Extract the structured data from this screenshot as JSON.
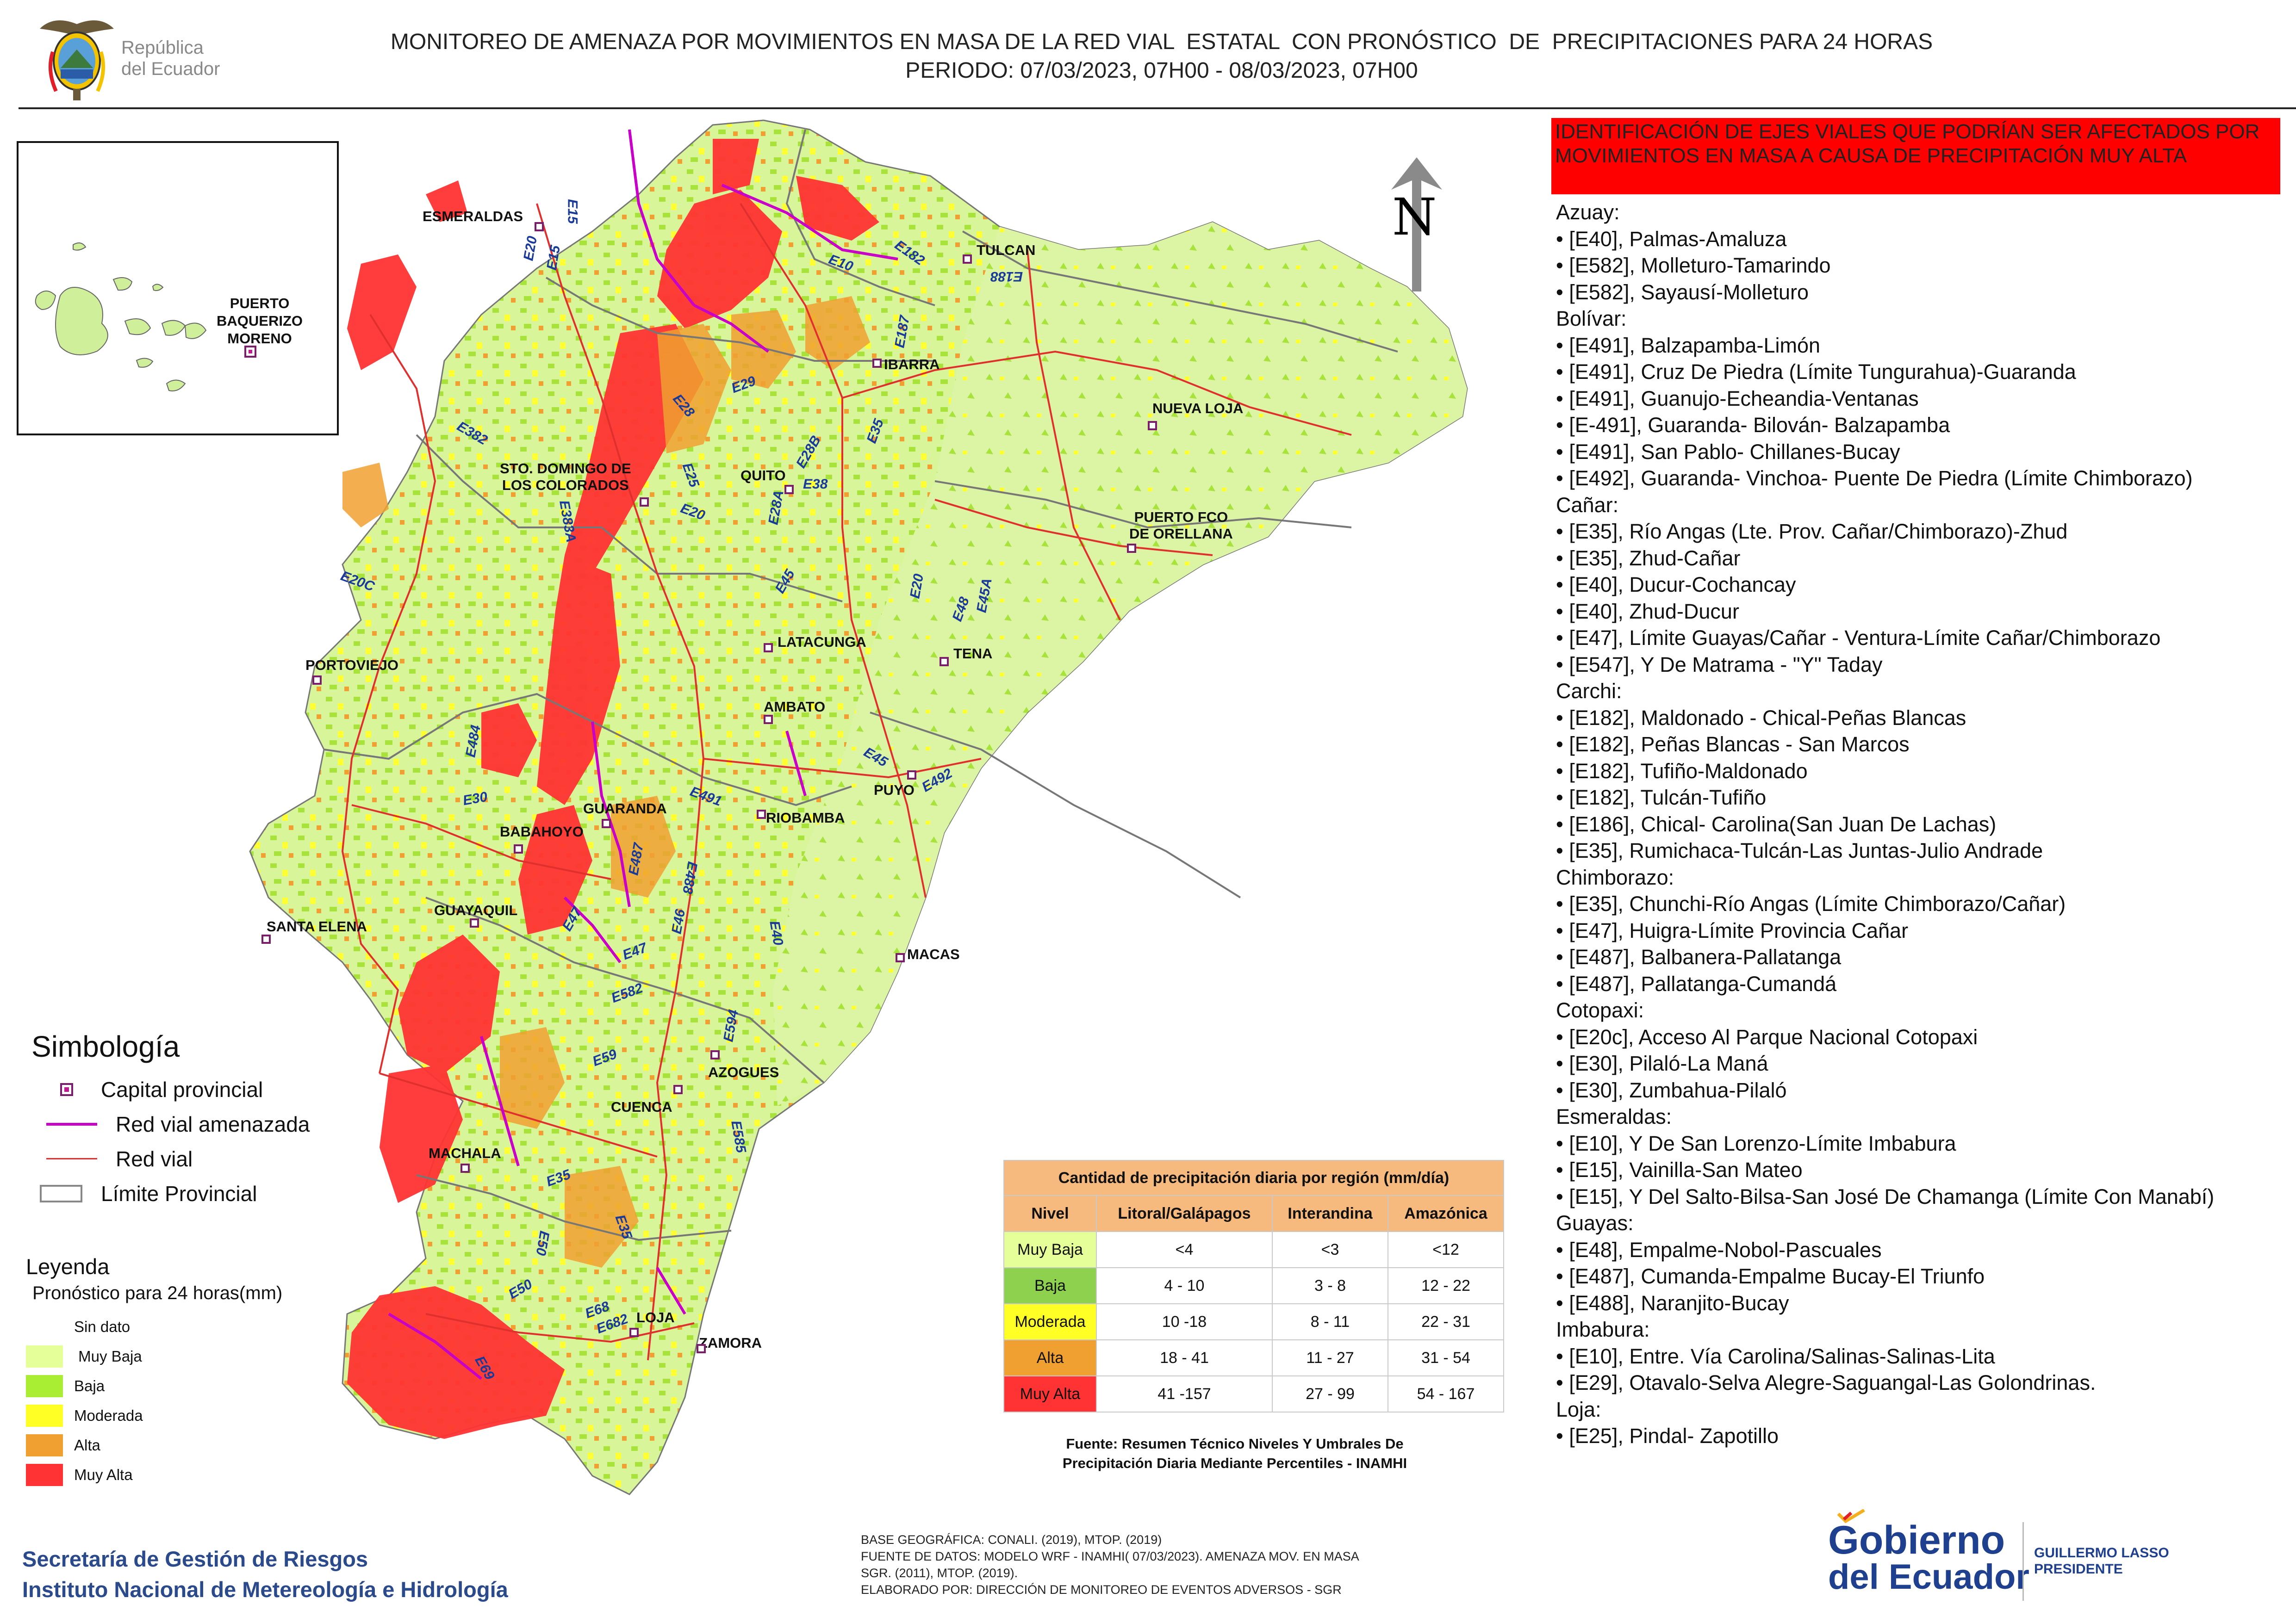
{
  "header": {
    "title_line1": "MONITOREO DE AMENAZA POR MOVIMIENTOS EN MASA DE LA RED VIAL  ESTATAL  CON PRONÓSTICO  DE  PRECIPITACIONES PARA 24 HORAS",
    "title_line2": "PERIODO: 07/03/2023, 07H00 - 08/03/2023, 07H00",
    "logo_line1": "República",
    "logo_line2": "del Ecuador"
  },
  "north_label": "N",
  "inset": {
    "city_line1": "PUERTO",
    "city_line2": "BAQUERIZO",
    "city_line3": "MORENO"
  },
  "cities": [
    "ESMERALDAS",
    "TULCAN",
    "IBARRA",
    "NUEVA LOJA",
    "QUITO",
    "STO. DOMINGO DE",
    "LOS COLORADOS",
    "PUERTO FCO",
    "DE ORELLANA",
    "PORTOVIEJO",
    "LATACUNGA",
    "TENA",
    "AMBATO",
    "PUYO",
    "GUARANDA",
    "RIOBAMBA",
    "BABAHOYO",
    "GUAYAQUIL",
    "SANTA ELENA",
    "MACAS",
    "AZOGUES",
    "CUENCA",
    "MACHALA",
    "LOJA",
    "ZAMORA"
  ],
  "road_labels": [
    "E15",
    "E20",
    "E15",
    "E10",
    "E182",
    "E188",
    "E187",
    "E29",
    "E28",
    "E382",
    "E28B",
    "E35",
    "E25",
    "E20",
    "E28A",
    "E38",
    "E383A",
    "E20C",
    "E45",
    "E20",
    "E45A",
    "E48",
    "E484",
    "E30",
    "E45",
    "E492",
    "E491",
    "E487",
    "E488",
    "E47",
    "E46",
    "E40",
    "E47",
    "E582",
    "E594",
    "E59",
    "E585",
    "E35",
    "E50",
    "E35",
    "E50",
    "E68",
    "E682",
    "E69"
  ],
  "route_panel": {
    "header": "IDENTIFICACIÓN DE EJES VIALES QUE PODRÍAN SER AFECTADOS POR MOVIMIENTOS EN MASA A CAUSA DE PRECIPITACIÓN MUY ALTA",
    "groups": [
      {
        "province": "Azuay:",
        "items": [
          "• [E40], Palmas-Amaluza",
          "• [E582], Molleturo-Tamarindo",
          "• [E582], Sayausí-Molleturo"
        ]
      },
      {
        "province": "Bolívar:",
        "items": [
          "• [E491], Balzapamba-Limón",
          "• [E491], Cruz De Piedra (Límite Tungurahua)-Guaranda",
          "• [E491], Guanujo-Echeandia-Ventanas",
          "• [E-491], Guaranda- Bilován- Balzapamba",
          "• [E491], San Pablo- Chillanes-Bucay",
          "• [E492], Guaranda- Vinchoa- Puente De Piedra (Límite Chimborazo)"
        ]
      },
      {
        "province": "Cañar:",
        "items": [
          "• [E35], Río Angas (Lte. Prov. Cañar/Chimborazo)-Zhud",
          "• [E35], Zhud-Cañar",
          "• [E40], Ducur-Cochancay",
          "• [E40], Zhud-Ducur",
          "• [E47], Límite Guayas/Cañar - Ventura-Límite Cañar/Chimborazo",
          "• [E547], Y De Matrama - \"Y\" Taday"
        ]
      },
      {
        "province": "Carchi:",
        "items": [
          "• [E182], Maldonado - Chical-Peñas Blancas",
          "• [E182], Peñas Blancas - San Marcos",
          "• [E182], Tufiño-Maldonado",
          "• [E182], Tulcán-Tufiño",
          "• [E186], Chical- Carolina(San Juan De Lachas)",
          "• [E35], Rumichaca-Tulcán-Las Juntas-Julio Andrade"
        ]
      },
      {
        "province": "Chimborazo:",
        "items": [
          "• [E35], Chunchi-Río Angas (Límite Chimborazo/Cañar)",
          "• [E47], Huigra-Límite Provincia Cañar",
          "• [E487], Balbanera-Pallatanga",
          "• [E487], Pallatanga-Cumandá"
        ]
      },
      {
        "province": "Cotopaxi:",
        "items": [
          "• [E20c], Acceso Al Parque Nacional Cotopaxi",
          "• [E30], Pilaló-La Maná",
          "• [E30], Zumbahua-Pilaló"
        ]
      },
      {
        "province": "Esmeraldas:",
        "items": [
          "• [E10], Y De San Lorenzo-Límite Imbabura",
          "• [E15], Vainilla-San Mateo",
          "• [E15], Y Del Salto-Bilsa-San José De Chamanga (Límite Con Manabí)"
        ]
      },
      {
        "province": "Guayas:",
        "items": [
          "• [E48], Empalme-Nobol-Pascuales",
          "• [E487], Cumanda-Empalme Bucay-El Triunfo",
          "• [E488], Naranjito-Bucay"
        ]
      },
      {
        "province": "Imbabura:",
        "items": [
          "• [E10], Entre. Vía Carolina/Salinas-Salinas-Lita",
          "• [E29], Otavalo-Selva Alegre-Saguangal-Las Golondrinas."
        ]
      },
      {
        "province": "Loja:",
        "items": [
          "• [E25], Pindal- Zapotillo"
        ]
      }
    ]
  },
  "simbologia": {
    "title": "Simbología",
    "items": [
      {
        "label": "Capital provincial",
        "symbol": "capital-marker-icon",
        "color": "#c2198f"
      },
      {
        "label": "Red vial amenazada",
        "symbol": "line",
        "color": "#c800c8"
      },
      {
        "label": "Red vial",
        "symbol": "line",
        "color": "#e0302e"
      },
      {
        "label": "Límite Provincial",
        "symbol": "box",
        "color": "#888888"
      }
    ]
  },
  "leyenda": {
    "title": "Leyenda",
    "subtitle": "Pronóstico para 24 horas(mm)",
    "classes": [
      {
        "label": "Sin dato",
        "color": "#ffffff"
      },
      {
        "label": " Muy Baja",
        "color": "#e5ff99"
      },
      {
        "label": "Baja",
        "color": "#aaee33"
      },
      {
        "label": "Moderada",
        "color": "#ffff26"
      },
      {
        "label": "Alta",
        "color": "#f0a030"
      },
      {
        "label": "Muy Alta",
        "color": "#ff3333"
      }
    ]
  },
  "precip_table": {
    "title": "Cantidad de precipitación diaria por región (mm/día)",
    "columns": [
      "Nivel",
      "Litoral/Galápagos",
      "Interandina",
      "Amazónica"
    ],
    "rows": [
      {
        "level": "Muy Baja",
        "color": "#e5ff99",
        "values": [
          "<4",
          "<3",
          "<12"
        ]
      },
      {
        "level": "Baja",
        "color": "#8dd14f",
        "values": [
          "4 - 10",
          "3 - 8",
          "12 - 22"
        ]
      },
      {
        "level": "Moderada",
        "color": "#ffff26",
        "values": [
          "10 -18",
          "8 - 11",
          "22 - 31"
        ]
      },
      {
        "level": "Alta",
        "color": "#f0a030",
        "values": [
          "18 - 41",
          "11 - 27",
          "31 - 54"
        ]
      },
      {
        "level": "Muy Alta",
        "color": "#ff3333",
        "values": [
          "41 -157",
          "27 - 99",
          "54 - 167"
        ]
      }
    ],
    "source_line1": "Fuente: Resumen Técnico Niveles Y Umbrales De",
    "source_line2": "Precipitación Diaria Mediante Percentiles - INAMHI"
  },
  "footer": {
    "institution1": "Secretaría de Gestión de Riesgos",
    "institution2": "Instituto Nacional de Metereología e Hidrología",
    "note1": "BASE GEOGRÁFICA: CONALI. (2019), MTOP. (2019)",
    "note2": "FUENTE DE DATOS: MODELO WRF - INAMHI( 07/03/2023).  AMENAZA MOV. EN MASA",
    "note3": "SGR. (2011), MTOP. (2019).",
    "note4": "ELABORADO POR: DIRECCIÓN DE MONITOREO DE EVENTOS ADVERSOS - SGR",
    "gob_line1": "Gobierno",
    "gob_line2": "del Ecuador",
    "president_name": "GUILLERMO LASSO",
    "president_title": "PRESIDENTE"
  }
}
